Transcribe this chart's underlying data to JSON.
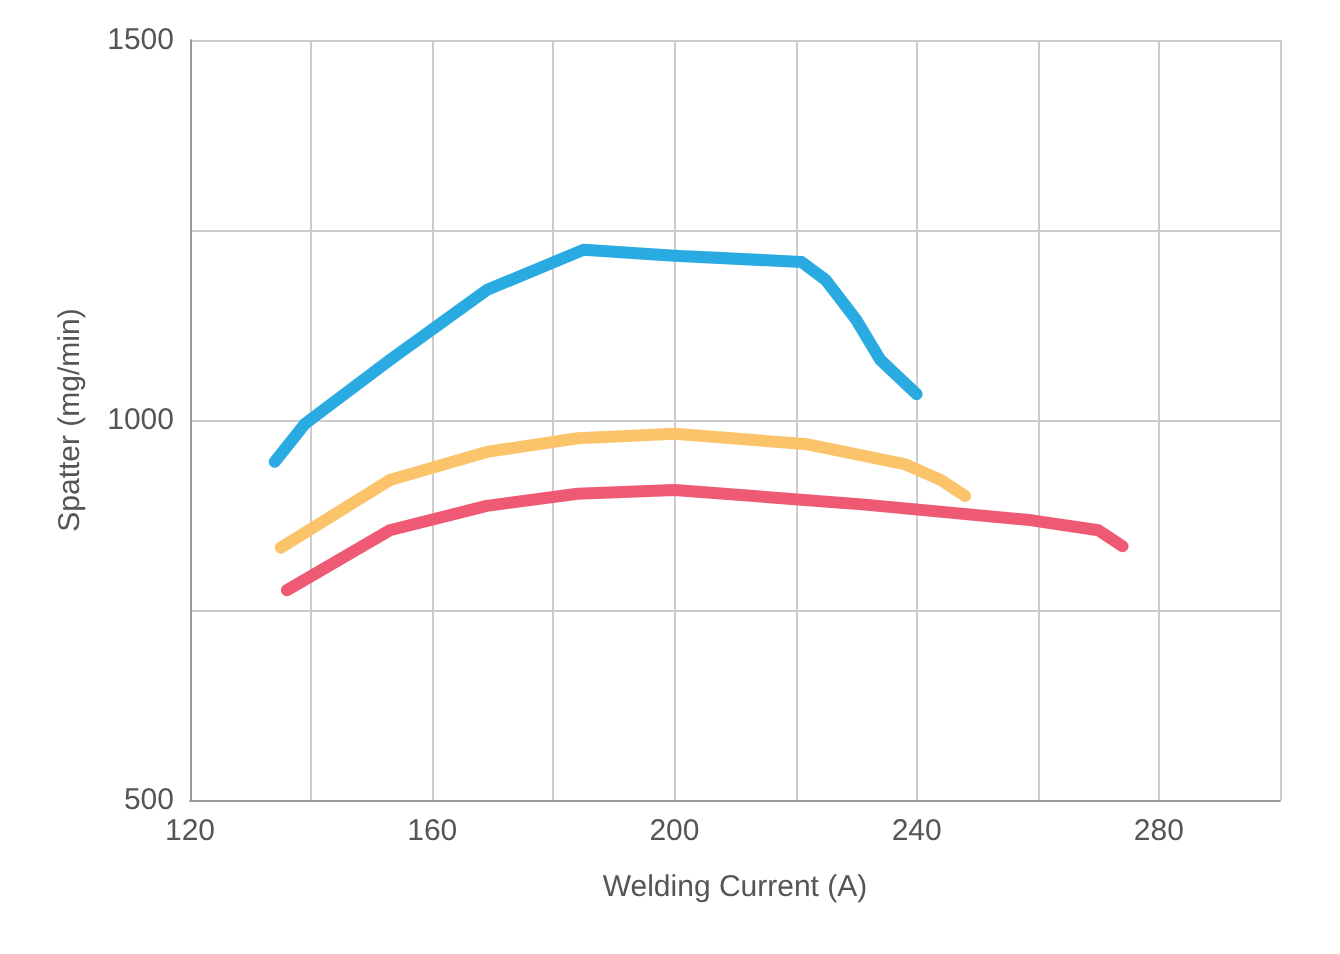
{
  "chart_data": {
    "type": "line",
    "xlabel": "Welding Current (A)",
    "ylabel": "Spatter (mg/min)",
    "xlim": [
      120,
      300
    ],
    "xticks": [
      {
        "value": 120,
        "label": "120"
      },
      {
        "value": 140,
        "label": null
      },
      {
        "value": 160,
        "label": "160"
      },
      {
        "value": 180,
        "label": null
      },
      {
        "value": 200,
        "label": "200"
      },
      {
        "value": 220,
        "label": null
      },
      {
        "value": 240,
        "label": "240"
      },
      {
        "value": 260,
        "label": null
      },
      {
        "value": 280,
        "label": "280"
      },
      {
        "value": 300,
        "label": null
      }
    ],
    "ylim": [
      500,
      1500
    ],
    "yticks": [
      {
        "value": 500,
        "label": "500"
      },
      {
        "value": 750,
        "label": null
      },
      {
        "value": 1000,
        "label": "1000"
      },
      {
        "value": 1250,
        "label": null
      },
      {
        "value": 1500,
        "label": "1500"
      }
    ],
    "grid": true,
    "marker": "none",
    "line_style": "solid",
    "series": [
      {
        "color": "#29abe2",
        "x": [
          134,
          139,
          153,
          169,
          185,
          200,
          221,
          225,
          230,
          234,
          240
        ],
        "values": [
          945,
          995,
          1079,
          1171,
          1224,
          1216,
          1208,
          1184,
          1132,
          1079,
          1034
        ]
      },
      {
        "color": "#fbc46b",
        "x": [
          135,
          153,
          169,
          184,
          200,
          222,
          238,
          244,
          248
        ],
        "values": [
          832,
          921,
          958,
          976,
          982,
          968,
          942,
          921,
          900
        ]
      },
      {
        "color": "#ee5a74",
        "x": [
          136,
          153,
          169,
          184,
          200,
          231,
          259,
          270,
          274
        ],
        "values": [
          776,
          855,
          887,
          903,
          908,
          889,
          868,
          855,
          834
        ]
      }
    ]
  }
}
